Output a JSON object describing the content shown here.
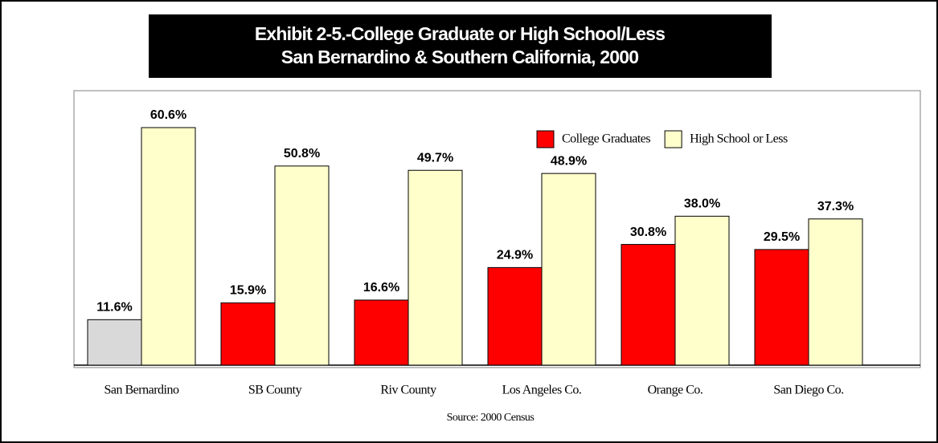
{
  "chart_data": {
    "type": "bar",
    "title": "Exhibit 2-5.-College Graduate or High School/Less",
    "subtitle": "San Bernardino & Southern California, 2000",
    "source": "Source:  2000 Census",
    "categories": [
      "San Bernardino",
      "SB County",
      "Riv County",
      "Los Angeles Co.",
      "Orange Co.",
      "San Diego Co."
    ],
    "series": [
      {
        "name": "College Graduates",
        "color": "#ff0000",
        "colors": [
          "#d9d9d9",
          "#ff0000",
          "#ff0000",
          "#ff0000",
          "#ff0000",
          "#ff0000"
        ],
        "values": [
          11.6,
          15.9,
          16.6,
          24.9,
          30.8,
          29.5
        ],
        "value_labels": [
          "11.6%",
          "15.9%",
          "16.6%",
          "24.9%",
          "30.8%",
          "29.5%"
        ]
      },
      {
        "name": "High School or Less",
        "color": "#ffffcc",
        "values": [
          60.6,
          50.8,
          49.7,
          48.9,
          38.0,
          37.3
        ],
        "value_labels": [
          "60.6%",
          "50.8%",
          "49.7%",
          "48.9%",
          "38.0%",
          "37.3%"
        ]
      }
    ],
    "legend": "top-right"
  }
}
